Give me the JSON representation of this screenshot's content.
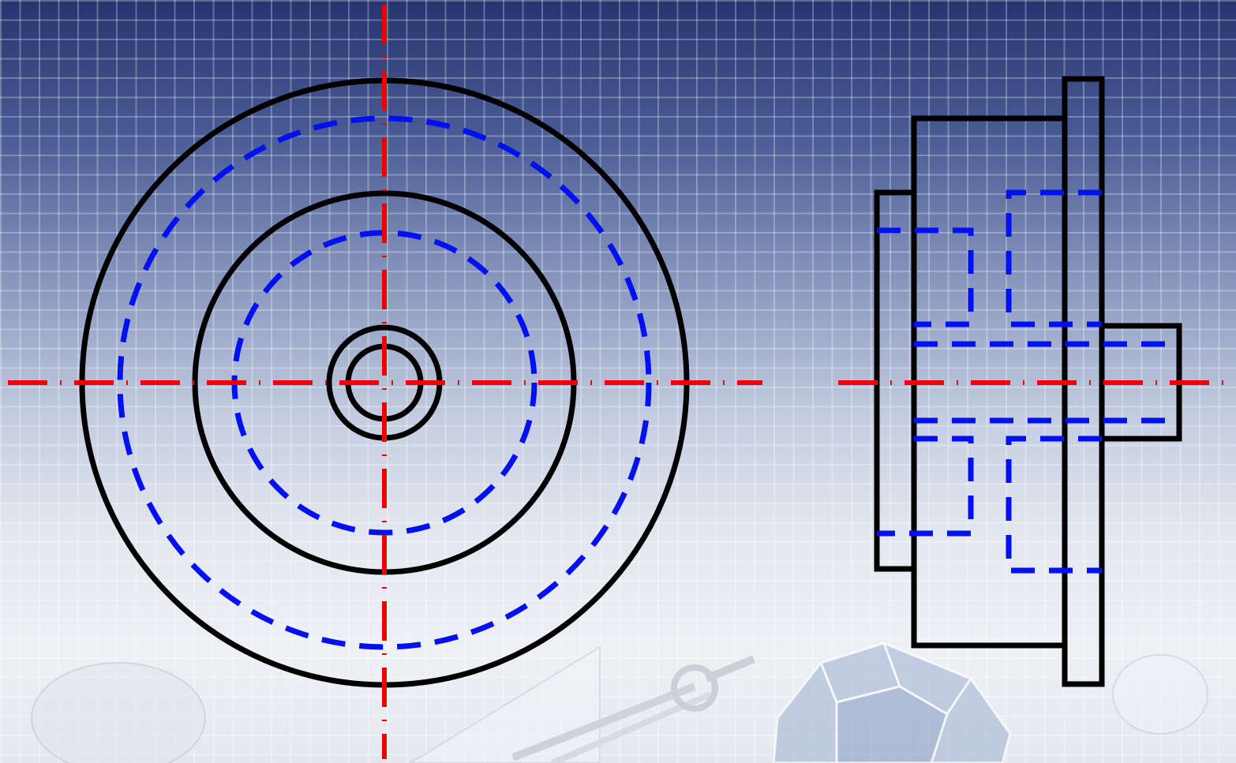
{
  "drawing": {
    "views": [
      "front-view",
      "side-view"
    ],
    "colors": {
      "visible_outline": "#000000",
      "hidden_line": "#0010ee",
      "center_line": "#ee0000",
      "background_top": "#263470",
      "background_bottom": "#eef0f4"
    },
    "line_types": {
      "visible_outline": "solid",
      "hidden_line": "dashed",
      "center_line": "dash-dot"
    }
  }
}
